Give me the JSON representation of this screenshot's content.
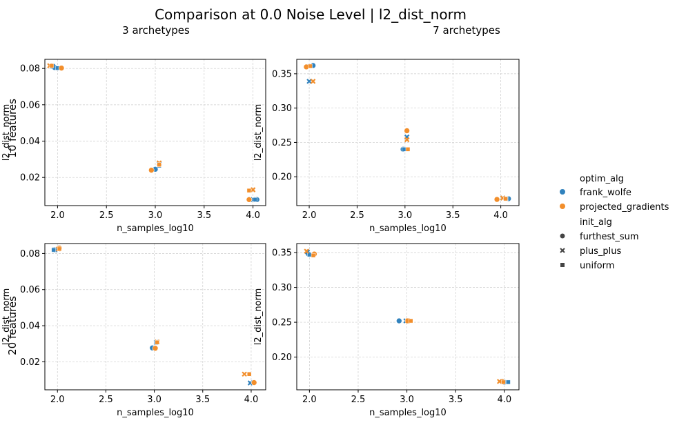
{
  "title": "Comparison at 0.0 Noise Level | l2_dist_norm",
  "column_titles": [
    "3 archetypes",
    "7 archetypes"
  ],
  "row_titles": [
    "10 features",
    "20 features"
  ],
  "legend": {
    "hue_title": "optim_alg",
    "hue_items": [
      {
        "label": "frank_wolfe",
        "color": "#3182bd"
      },
      {
        "label": "projected_gradients",
        "color": "#f28e2b"
      }
    ],
    "style_title": "init_alg",
    "style_items": [
      {
        "label": "furthest_sum",
        "marker": "circle"
      },
      {
        "label": "plus_plus",
        "marker": "x"
      },
      {
        "label": "uniform",
        "marker": "square"
      }
    ]
  },
  "chart_data": [
    {
      "type": "scatter",
      "row": 0,
      "col": 0,
      "xlabel": "n_samples_log10",
      "ylabel": "l2_dist_norm",
      "xlim": [
        1.87,
        4.13
      ],
      "ylim": [
        0.0045,
        0.085
      ],
      "xticks": [
        "2.0",
        "2.5",
        "3.0",
        "3.5",
        "4.0"
      ],
      "yticks": [
        "0.02",
        "0.04",
        "0.06",
        "0.08"
      ],
      "xtick_values": [
        2.0,
        2.5,
        3.0,
        3.5,
        4.0
      ],
      "ytick_values": [
        0.02,
        0.04,
        0.06,
        0.08
      ],
      "grid": true,
      "points": [
        {
          "x": 1.97,
          "y": 0.0805,
          "alg": "frank_wolfe",
          "init": "furthest_sum"
        },
        {
          "x": 1.95,
          "y": 0.0812,
          "alg": "frank_wolfe",
          "init": "plus_plus"
        },
        {
          "x": 2.0,
          "y": 0.0802,
          "alg": "frank_wolfe",
          "init": "uniform"
        },
        {
          "x": 2.04,
          "y": 0.0802,
          "alg": "projected_gradients",
          "init": "furthest_sum"
        },
        {
          "x": 1.92,
          "y": 0.0815,
          "alg": "projected_gradients",
          "init": "plus_plus"
        },
        {
          "x": 1.94,
          "y": 0.0815,
          "alg": "projected_gradients",
          "init": "uniform"
        },
        {
          "x": 3.0,
          "y": 0.0245,
          "alg": "frank_wolfe",
          "init": "furthest_sum"
        },
        {
          "x": 3.04,
          "y": 0.0275,
          "alg": "frank_wolfe",
          "init": "plus_plus"
        },
        {
          "x": 3.04,
          "y": 0.0265,
          "alg": "frank_wolfe",
          "init": "uniform"
        },
        {
          "x": 2.96,
          "y": 0.024,
          "alg": "projected_gradients",
          "init": "furthest_sum"
        },
        {
          "x": 3.04,
          "y": 0.028,
          "alg": "projected_gradients",
          "init": "plus_plus"
        },
        {
          "x": 3.04,
          "y": 0.027,
          "alg": "projected_gradients",
          "init": "uniform"
        },
        {
          "x": 4.04,
          "y": 0.0078,
          "alg": "frank_wolfe",
          "init": "furthest_sum"
        },
        {
          "x": 4.0,
          "y": 0.0078,
          "alg": "frank_wolfe",
          "init": "plus_plus"
        },
        {
          "x": 4.02,
          "y": 0.0078,
          "alg": "frank_wolfe",
          "init": "uniform"
        },
        {
          "x": 3.96,
          "y": 0.0078,
          "alg": "projected_gradients",
          "init": "furthest_sum"
        },
        {
          "x": 4.0,
          "y": 0.0132,
          "alg": "projected_gradients",
          "init": "plus_plus"
        },
        {
          "x": 3.96,
          "y": 0.0128,
          "alg": "projected_gradients",
          "init": "uniform"
        }
      ]
    },
    {
      "type": "scatter",
      "row": 0,
      "col": 1,
      "xlabel": "n_samples_log10",
      "ylabel": "l2_dist_norm",
      "xlim": [
        1.87,
        4.19
      ],
      "ylim": [
        0.158,
        0.371
      ],
      "xticks": [
        "2.0",
        "2.5",
        "3.0",
        "3.5",
        "4.0"
      ],
      "yticks": [
        "0.20",
        "0.25",
        "0.30",
        "0.35"
      ],
      "xtick_values": [
        2.0,
        2.5,
        3.0,
        3.5,
        4.0
      ],
      "ytick_values": [
        0.2,
        0.25,
        0.3,
        0.35
      ],
      "grid": true,
      "points": [
        {
          "x": 2.04,
          "y": 0.362,
          "alg": "frank_wolfe",
          "init": "furthest_sum"
        },
        {
          "x": 2.0,
          "y": 0.339,
          "alg": "frank_wolfe",
          "init": "plus_plus"
        },
        {
          "x": 2.0,
          "y": 0.361,
          "alg": "frank_wolfe",
          "init": "uniform"
        },
        {
          "x": 1.97,
          "y": 0.36,
          "alg": "projected_gradients",
          "init": "furthest_sum"
        },
        {
          "x": 2.04,
          "y": 0.339,
          "alg": "projected_gradients",
          "init": "plus_plus"
        },
        {
          "x": 2.01,
          "y": 0.361,
          "alg": "projected_gradients",
          "init": "uniform"
        },
        {
          "x": 2.98,
          "y": 0.24,
          "alg": "frank_wolfe",
          "init": "furthest_sum"
        },
        {
          "x": 3.02,
          "y": 0.258,
          "alg": "frank_wolfe",
          "init": "plus_plus"
        },
        {
          "x": 2.99,
          "y": 0.24,
          "alg": "frank_wolfe",
          "init": "uniform"
        },
        {
          "x": 3.02,
          "y": 0.267,
          "alg": "projected_gradients",
          "init": "furthest_sum"
        },
        {
          "x": 3.02,
          "y": 0.254,
          "alg": "projected_gradients",
          "init": "plus_plus"
        },
        {
          "x": 3.03,
          "y": 0.24,
          "alg": "projected_gradients",
          "init": "uniform"
        },
        {
          "x": 4.08,
          "y": 0.168,
          "alg": "frank_wolfe",
          "init": "furthest_sum"
        },
        {
          "x": 4.02,
          "y": 0.169,
          "alg": "frank_wolfe",
          "init": "plus_plus"
        },
        {
          "x": 4.06,
          "y": 0.168,
          "alg": "frank_wolfe",
          "init": "uniform"
        },
        {
          "x": 3.96,
          "y": 0.167,
          "alg": "projected_gradients",
          "init": "furthest_sum"
        },
        {
          "x": 4.02,
          "y": 0.169,
          "alg": "projected_gradients",
          "init": "plus_plus"
        },
        {
          "x": 4.05,
          "y": 0.168,
          "alg": "projected_gradients",
          "init": "uniform"
        }
      ]
    },
    {
      "type": "scatter",
      "row": 1,
      "col": 0,
      "xlabel": "n_samples_log10",
      "ylabel": "l2_dist_norm",
      "xlim": [
        1.87,
        4.15
      ],
      "ylim": [
        0.0045,
        0.0855
      ],
      "xticks": [
        "2.0",
        "2.5",
        "3.0",
        "3.5",
        "4.0"
      ],
      "yticks": [
        "0.02",
        "0.04",
        "0.06",
        "0.08"
      ],
      "xtick_values": [
        2.0,
        2.5,
        3.0,
        3.5,
        4.0
      ],
      "ytick_values": [
        0.02,
        0.04,
        0.06,
        0.08
      ],
      "grid": true,
      "points": [
        {
          "x": 1.97,
          "y": 0.082,
          "alg": "frank_wolfe",
          "init": "furthest_sum"
        },
        {
          "x": 1.97,
          "y": 0.082,
          "alg": "frank_wolfe",
          "init": "plus_plus"
        },
        {
          "x": 1.96,
          "y": 0.082,
          "alg": "frank_wolfe",
          "init": "uniform"
        },
        {
          "x": 2.02,
          "y": 0.083,
          "alg": "projected_gradients",
          "init": "furthest_sum"
        },
        {
          "x": 2.01,
          "y": 0.0825,
          "alg": "projected_gradients",
          "init": "plus_plus"
        },
        {
          "x": 2.02,
          "y": 0.0825,
          "alg": "projected_gradients",
          "init": "uniform"
        },
        {
          "x": 2.98,
          "y": 0.0277,
          "alg": "frank_wolfe",
          "init": "furthest_sum"
        },
        {
          "x": 3.02,
          "y": 0.0308,
          "alg": "frank_wolfe",
          "init": "plus_plus"
        },
        {
          "x": 3.02,
          "y": 0.0305,
          "alg": "frank_wolfe",
          "init": "uniform"
        },
        {
          "x": 3.01,
          "y": 0.0275,
          "alg": "projected_gradients",
          "init": "furthest_sum"
        },
        {
          "x": 3.03,
          "y": 0.031,
          "alg": "projected_gradients",
          "init": "plus_plus"
        },
        {
          "x": 3.03,
          "y": 0.0308,
          "alg": "projected_gradients",
          "init": "uniform"
        },
        {
          "x": 4.02,
          "y": 0.0085,
          "alg": "frank_wolfe",
          "init": "furthest_sum"
        },
        {
          "x": 3.99,
          "y": 0.0083,
          "alg": "frank_wolfe",
          "init": "plus_plus"
        },
        {
          "x": 3.98,
          "y": 0.0133,
          "alg": "frank_wolfe",
          "init": "uniform"
        },
        {
          "x": 4.03,
          "y": 0.0085,
          "alg": "projected_gradients",
          "init": "furthest_sum"
        },
        {
          "x": 3.93,
          "y": 0.0132,
          "alg": "projected_gradients",
          "init": "plus_plus"
        },
        {
          "x": 3.98,
          "y": 0.0132,
          "alg": "projected_gradients",
          "init": "uniform"
        }
      ]
    },
    {
      "type": "scatter",
      "row": 1,
      "col": 1,
      "xlabel": "n_samples_log10",
      "ylabel": "l2_dist_norm",
      "xlim": [
        1.87,
        4.15
      ],
      "ylim": [
        0.153,
        0.363
      ],
      "xticks": [
        "2.0",
        "2.5",
        "3.0",
        "3.5",
        "4.0"
      ],
      "yticks": [
        "0.20",
        "0.25",
        "0.30",
        "0.35"
      ],
      "xtick_values": [
        2.0,
        2.5,
        3.0,
        3.5,
        4.0
      ],
      "ytick_values": [
        0.2,
        0.25,
        0.3,
        0.35
      ],
      "grid": true,
      "points": [
        {
          "x": 1.99,
          "y": 0.348,
          "alg": "frank_wolfe",
          "init": "furthest_sum"
        },
        {
          "x": 1.98,
          "y": 0.351,
          "alg": "frank_wolfe",
          "init": "plus_plus"
        },
        {
          "x": 2.0,
          "y": 0.347,
          "alg": "frank_wolfe",
          "init": "uniform"
        },
        {
          "x": 2.05,
          "y": 0.348,
          "alg": "projected_gradients",
          "init": "furthest_sum"
        },
        {
          "x": 1.97,
          "y": 0.352,
          "alg": "projected_gradients",
          "init": "plus_plus"
        },
        {
          "x": 2.04,
          "y": 0.346,
          "alg": "projected_gradients",
          "init": "uniform"
        },
        {
          "x": 2.92,
          "y": 0.252,
          "alg": "frank_wolfe",
          "init": "furthest_sum"
        },
        {
          "x": 2.99,
          "y": 0.252,
          "alg": "frank_wolfe",
          "init": "plus_plus"
        },
        {
          "x": 3.02,
          "y": 0.252,
          "alg": "frank_wolfe",
          "init": "uniform"
        },
        {
          "x": 3.01,
          "y": 0.252,
          "alg": "projected_gradients",
          "init": "furthest_sum"
        },
        {
          "x": 3.01,
          "y": 0.252,
          "alg": "projected_gradients",
          "init": "plus_plus"
        },
        {
          "x": 3.04,
          "y": 0.252,
          "alg": "projected_gradients",
          "init": "uniform"
        },
        {
          "x": 4.0,
          "y": 0.164,
          "alg": "frank_wolfe",
          "init": "furthest_sum"
        },
        {
          "x": 3.98,
          "y": 0.165,
          "alg": "frank_wolfe",
          "init": "plus_plus"
        },
        {
          "x": 4.04,
          "y": 0.164,
          "alg": "frank_wolfe",
          "init": "uniform"
        },
        {
          "x": 3.98,
          "y": 0.165,
          "alg": "projected_gradients",
          "init": "furthest_sum"
        },
        {
          "x": 3.95,
          "y": 0.165,
          "alg": "projected_gradients",
          "init": "plus_plus"
        },
        {
          "x": 3.99,
          "y": 0.164,
          "alg": "projected_gradients",
          "init": "uniform"
        }
      ]
    }
  ]
}
